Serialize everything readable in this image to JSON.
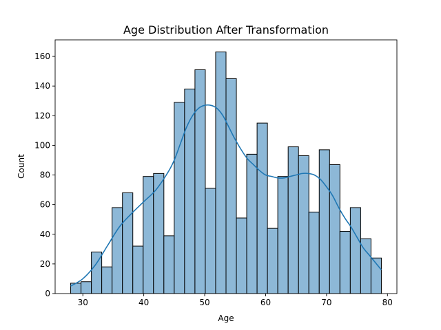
{
  "chart_data": {
    "type": "bar",
    "title": "Age Distribution After Transformation",
    "xlabel": "Age",
    "ylabel": "Count",
    "xlim": [
      25.45,
      81.55
    ],
    "ylim": [
      0,
      171.15
    ],
    "xticks": [
      30,
      40,
      50,
      60,
      70,
      80
    ],
    "yticks": [
      0,
      20,
      40,
      60,
      80,
      100,
      120,
      140,
      160
    ],
    "bin_edges": [
      28,
      29.7,
      31.4,
      33.1,
      34.8,
      36.5,
      38.2,
      39.9,
      41.6,
      43.3,
      45,
      46.7,
      48.4,
      50.1,
      51.8,
      53.5,
      55.2,
      56.9,
      58.6,
      60.3,
      62,
      63.7,
      65.4,
      67.1,
      68.8,
      70.5,
      72.2,
      73.9,
      75.6,
      77.3,
      79
    ],
    "counts": [
      7,
      8,
      28,
      18,
      58,
      68,
      32,
      79,
      81,
      39,
      129,
      138,
      151,
      71,
      163,
      145,
      51,
      94,
      115,
      44,
      79,
      99,
      93,
      55,
      97,
      87,
      42,
      58,
      37,
      24
    ],
    "kde": {
      "x": [
        28,
        30,
        32,
        34,
        36,
        38,
        40,
        42,
        44,
        45,
        46,
        47,
        48,
        49,
        50,
        51,
        52,
        53,
        54,
        55,
        56,
        57,
        58,
        59,
        60,
        61,
        62,
        63,
        64,
        65,
        66,
        67,
        68,
        69,
        70,
        71,
        72,
        73,
        74,
        75,
        76,
        77,
        78,
        79
      ],
      "y": [
        5,
        10,
        19,
        32,
        45,
        54,
        62,
        70,
        82,
        90,
        101,
        112,
        120,
        125,
        127,
        127,
        125,
        120,
        112,
        104,
        97,
        91,
        87,
        83,
        80,
        79,
        78,
        78,
        79,
        80,
        81,
        81,
        80,
        77,
        72,
        66,
        58,
        51,
        45,
        38,
        31,
        26,
        21,
        16
      ]
    },
    "bar_color": "#8db8d7",
    "line_color": "#1f77b4"
  }
}
